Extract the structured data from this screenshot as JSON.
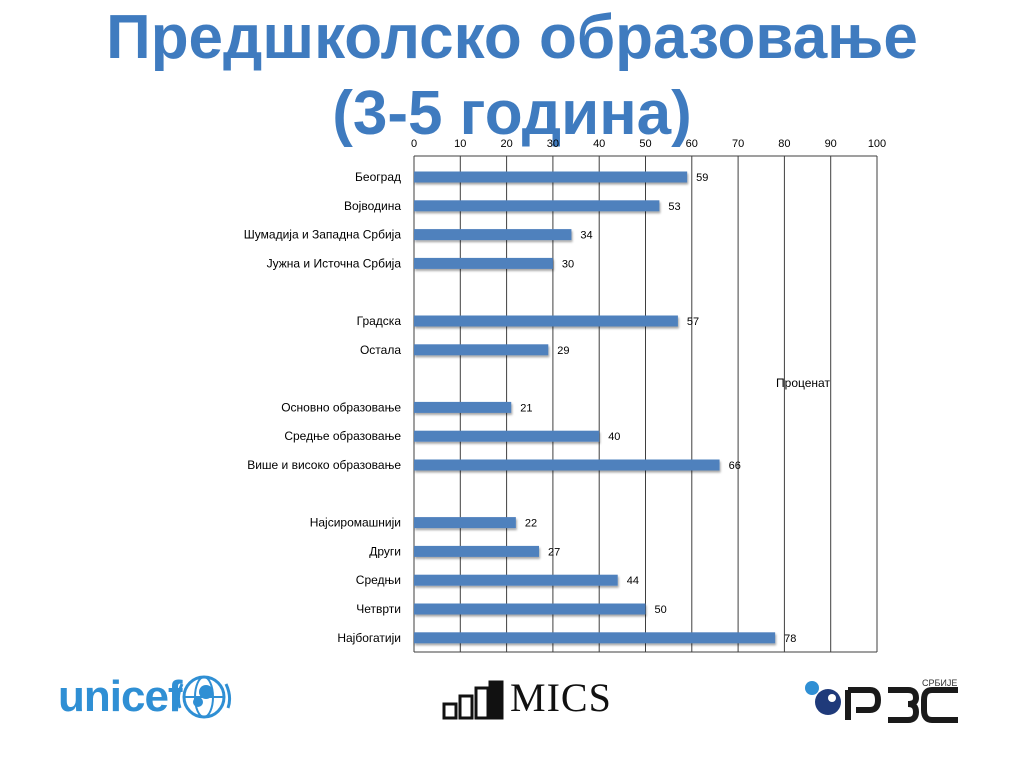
{
  "title": {
    "line1": "Предшколско образовање",
    "line2": "(3-5 година)"
  },
  "colors": {
    "title": "#3f7bbf",
    "bar": "#4f81bd",
    "grid": "#3f3f3f",
    "unicef": "#2f8fd4"
  },
  "chart_data": {
    "type": "bar",
    "orientation": "horizontal",
    "xaxis_position": "top",
    "xlim": [
      0,
      100
    ],
    "xticks": [
      "0",
      "10",
      "20",
      "30",
      "40",
      "50",
      "60",
      "70",
      "80",
      "90",
      "100"
    ],
    "annotation": "Проценат",
    "categories": [
      "Београд",
      "Војводина",
      "Шумадија и Западна Србија",
      "Јужна и Источна Србија",
      "",
      "Градска",
      "Остала",
      "",
      "Основно образовање",
      "Средње образовање",
      "Више и високо образовање",
      "",
      "Најсиромашнији",
      "Други",
      "Средњи",
      "Четврти",
      "Најбогатији"
    ],
    "values": [
      59,
      53,
      34,
      30,
      null,
      57,
      29,
      null,
      21,
      40,
      66,
      null,
      22,
      27,
      44,
      50,
      78
    ],
    "grid": true
  },
  "logos": {
    "unicef": "unicef",
    "mics": "MICS",
    "rzs": "РЗС",
    "rzs_small": "СРБИЈЕ"
  }
}
